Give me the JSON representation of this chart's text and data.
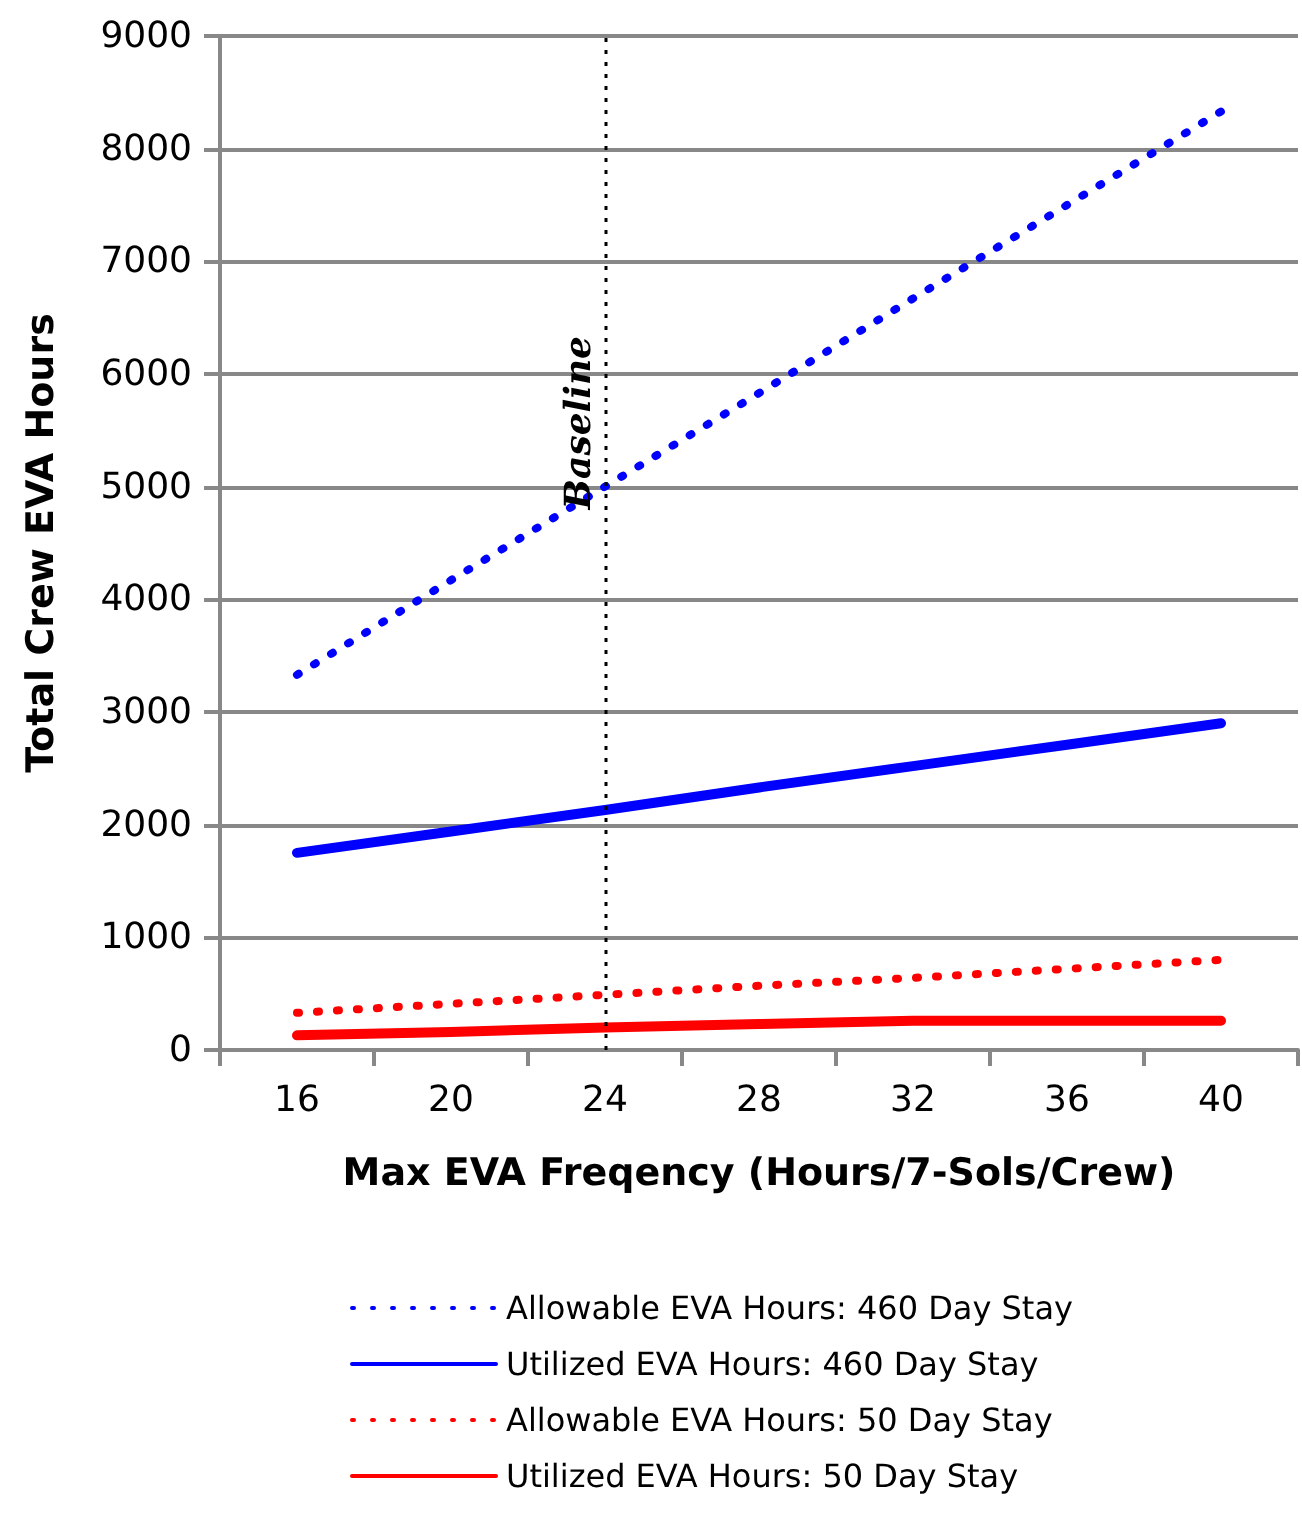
{
  "chart_data": {
    "type": "line",
    "xlabel": "Max EVA Freqency (Hours/7-Sols/Crew)",
    "ylabel": "Total Crew EVA Hours",
    "categories": [
      "16",
      "20",
      "24",
      "28",
      "32",
      "36",
      "40"
    ],
    "series": [
      {
        "name": "Allowable EVA Hours: 460 Day Stay",
        "color": "#0000ff",
        "line_style": "dotted",
        "values": [
          3330,
          4170,
          5000,
          5830,
          6670,
          7500,
          8330
        ]
      },
      {
        "name": "Utilized EVA Hours: 460 Day Stay",
        "color": "#0000ff",
        "line_style": "solid",
        "values": [
          1750,
          1940,
          2130,
          2330,
          2520,
          2710,
          2900
        ]
      },
      {
        "name": "Allowable EVA Hours: 50 Day Stay",
        "color": "#ff0000",
        "line_style": "dotted",
        "values": [
          330,
          410,
          490,
          570,
          640,
          720,
          800
        ]
      },
      {
        "name": "Utilized EVA Hours: 50 Day Stay",
        "color": "#ff0000",
        "line_style": "solid",
        "values": [
          130,
          160,
          200,
          230,
          260,
          260,
          260
        ]
      }
    ],
    "ylim": [
      0,
      9000
    ],
    "yticks": [
      0,
      1000,
      2000,
      3000,
      4000,
      5000,
      6000,
      7000,
      8000,
      9000
    ],
    "ref_lines": [
      {
        "axis": "x",
        "value": "24",
        "label": "Baseline",
        "color": "#000000",
        "line_style": "dotted"
      }
    ],
    "grid": "y",
    "legend": "bottom",
    "marker": "none"
  }
}
